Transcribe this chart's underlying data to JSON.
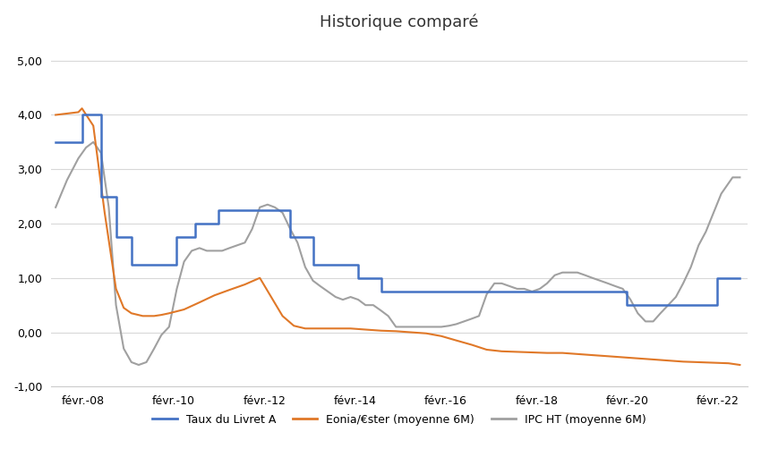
{
  "title": "Historique comparé",
  "title_fontsize": 13,
  "background_color": "#ffffff",
  "ylim": [
    -1.0,
    5.4
  ],
  "yticks": [
    -1.0,
    0.0,
    1.0,
    2.0,
    3.0,
    4.0,
    5.0
  ],
  "grid_color": "#d8d8d8",
  "colors": {
    "livret_a": "#4472c4",
    "eonia": "#e07828",
    "ipc": "#a0a0a0"
  },
  "legend_labels": [
    "Taux du Livret A",
    "Eonia/€ster (moyenne 6M)",
    "IPC HT (moyenne 6M)"
  ],
  "xtick_labels": [
    "févr.-08",
    "févr.-10",
    "févr.-12",
    "févr.-14",
    "févr.-16",
    "févr.-18",
    "févr.-20",
    "févr.-22"
  ],
  "xtick_positions": [
    2008.1,
    2010.1,
    2012.1,
    2014.1,
    2016.1,
    2018.1,
    2020.1,
    2022.1
  ],
  "xlim": [
    2007.4,
    2022.75
  ],
  "livret_a": {
    "x": [
      2007.5,
      2008.08,
      2008.08,
      2008.5,
      2008.5,
      2008.83,
      2008.83,
      2009.17,
      2009.17,
      2009.67,
      2009.67,
      2010.17,
      2010.17,
      2010.58,
      2010.58,
      2011.08,
      2011.08,
      2011.58,
      2011.58,
      2012.08,
      2012.08,
      2012.67,
      2012.67,
      2013.17,
      2013.17,
      2014.17,
      2014.17,
      2014.67,
      2014.67,
      2015.17,
      2015.17,
      2016.08,
      2016.08,
      2020.08,
      2020.08,
      2020.5,
      2020.5,
      2021.17,
      2021.17,
      2022.08,
      2022.08,
      2022.58
    ],
    "y": [
      3.5,
      3.5,
      4.0,
      4.0,
      2.5,
      2.5,
      1.75,
      1.75,
      1.25,
      1.25,
      1.25,
      1.25,
      1.75,
      1.75,
      2.0,
      2.0,
      2.25,
      2.25,
      2.25,
      2.25,
      2.25,
      2.25,
      1.75,
      1.75,
      1.25,
      1.25,
      1.0,
      1.0,
      0.75,
      0.75,
      0.75,
      0.75,
      0.75,
      0.75,
      0.5,
      0.5,
      0.5,
      0.5,
      0.5,
      0.5,
      1.0,
      1.0
    ]
  },
  "eonia": {
    "x": [
      2007.5,
      2008.0,
      2008.08,
      2008.33,
      2008.58,
      2008.83,
      2009.0,
      2009.17,
      2009.42,
      2009.67,
      2009.83,
      2010.0,
      2010.33,
      2010.67,
      2011.0,
      2011.33,
      2011.67,
      2012.0,
      2012.25,
      2012.5,
      2012.75,
      2013.0,
      2013.33,
      2013.67,
      2014.0,
      2014.33,
      2014.67,
      2015.0,
      2015.33,
      2015.67,
      2016.0,
      2016.33,
      2016.67,
      2017.0,
      2017.33,
      2017.67,
      2018.0,
      2018.33,
      2018.67,
      2019.0,
      2019.33,
      2019.67,
      2020.0,
      2020.33,
      2020.67,
      2021.0,
      2021.33,
      2021.67,
      2022.0,
      2022.33,
      2022.58
    ],
    "y": [
      4.0,
      4.05,
      4.12,
      3.8,
      2.2,
      0.8,
      0.45,
      0.35,
      0.3,
      0.3,
      0.32,
      0.35,
      0.42,
      0.55,
      0.68,
      0.78,
      0.88,
      1.0,
      0.65,
      0.3,
      0.12,
      0.07,
      0.07,
      0.07,
      0.07,
      0.05,
      0.03,
      0.02,
      0.0,
      -0.02,
      -0.07,
      -0.15,
      -0.23,
      -0.32,
      -0.35,
      -0.36,
      -0.37,
      -0.38,
      -0.38,
      -0.4,
      -0.42,
      -0.44,
      -0.46,
      -0.48,
      -0.5,
      -0.52,
      -0.54,
      -0.55,
      -0.56,
      -0.57,
      -0.6
    ]
  },
  "ipc": {
    "x": [
      2007.5,
      2007.75,
      2008.0,
      2008.17,
      2008.33,
      2008.5,
      2008.67,
      2008.83,
      2009.0,
      2009.17,
      2009.33,
      2009.5,
      2009.67,
      2009.83,
      2010.0,
      2010.17,
      2010.33,
      2010.5,
      2010.67,
      2010.83,
      2011.0,
      2011.17,
      2011.33,
      2011.5,
      2011.67,
      2011.83,
      2012.0,
      2012.17,
      2012.33,
      2012.5,
      2012.67,
      2012.83,
      2013.0,
      2013.17,
      2013.33,
      2013.5,
      2013.67,
      2013.83,
      2014.0,
      2014.17,
      2014.33,
      2014.5,
      2014.67,
      2014.83,
      2015.0,
      2015.17,
      2015.33,
      2015.5,
      2015.67,
      2015.83,
      2016.0,
      2016.17,
      2016.33,
      2016.5,
      2016.67,
      2016.83,
      2017.0,
      2017.17,
      2017.33,
      2017.5,
      2017.67,
      2017.83,
      2018.0,
      2018.17,
      2018.33,
      2018.5,
      2018.67,
      2018.83,
      2019.0,
      2019.17,
      2019.33,
      2019.5,
      2019.67,
      2019.83,
      2020.0,
      2020.17,
      2020.33,
      2020.5,
      2020.67,
      2020.83,
      2021.0,
      2021.17,
      2021.33,
      2021.5,
      2021.67,
      2021.83,
      2022.0,
      2022.17,
      2022.42,
      2022.58
    ],
    "y": [
      2.3,
      2.8,
      3.2,
      3.4,
      3.5,
      3.3,
      2.3,
      0.5,
      -0.3,
      -0.55,
      -0.6,
      -0.55,
      -0.3,
      -0.05,
      0.1,
      0.8,
      1.3,
      1.5,
      1.55,
      1.5,
      1.5,
      1.5,
      1.55,
      1.6,
      1.65,
      1.9,
      2.3,
      2.35,
      2.3,
      2.2,
      1.9,
      1.65,
      1.2,
      0.95,
      0.85,
      0.75,
      0.65,
      0.6,
      0.65,
      0.6,
      0.5,
      0.5,
      0.4,
      0.3,
      0.1,
      0.1,
      0.1,
      0.1,
      0.1,
      0.1,
      0.1,
      0.12,
      0.15,
      0.2,
      0.25,
      0.3,
      0.7,
      0.9,
      0.9,
      0.85,
      0.8,
      0.8,
      0.75,
      0.8,
      0.9,
      1.05,
      1.1,
      1.1,
      1.1,
      1.05,
      1.0,
      0.95,
      0.9,
      0.85,
      0.8,
      0.6,
      0.35,
      0.2,
      0.2,
      0.35,
      0.5,
      0.65,
      0.9,
      1.2,
      1.6,
      1.85,
      2.2,
      2.55,
      2.85,
      2.85
    ]
  }
}
